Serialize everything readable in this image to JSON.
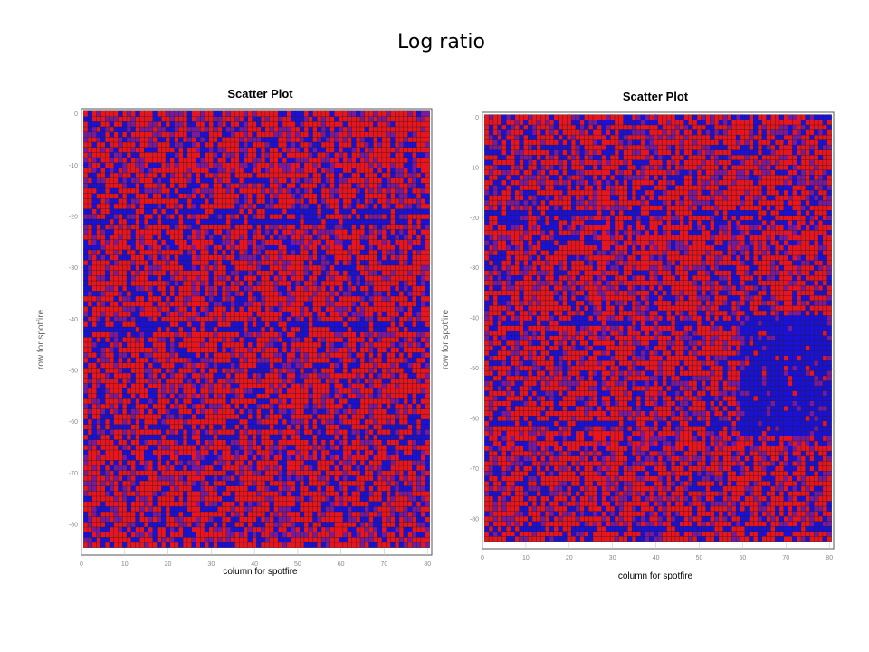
{
  "page": {
    "title": "Log ratio"
  },
  "colors": {
    "red": "#e8141e",
    "blue": "#1a10d8",
    "purple": "#7a1a9a",
    "grid": "#c8c8c8",
    "tick_text": "#888888",
    "frame": "#555555"
  },
  "chart_data": [
    {
      "type": "scatter",
      "title": "Scatter Plot",
      "xlabel": "column for spotfire",
      "ylabel": "row for spotfire",
      "xlim": [
        0,
        81
      ],
      "ylim": [
        -86,
        1
      ],
      "x_ticks": [
        0,
        10,
        20,
        30,
        40,
        50,
        60,
        70,
        80
      ],
      "y_ticks": [
        -80,
        -70,
        -60,
        -50,
        -40,
        -30,
        -20,
        -10,
        0
      ],
      "grid": true,
      "points_grid": {
        "columns": [
          1,
          80
        ],
        "rows": [
          -84,
          0
        ]
      },
      "color_by": "log ratio",
      "series_colors": [
        "red",
        "blue",
        "purple"
      ],
      "notes_blue_rows": [
        -19,
        -21,
        -41,
        -42,
        -61,
        -63
      ]
    },
    {
      "type": "scatter",
      "title": "Scatter Plot",
      "xlabel": "column for spotfire",
      "ylabel": "row for spotfire",
      "xlim": [
        0,
        81
      ],
      "ylim": [
        -86,
        1
      ],
      "x_ticks": [
        0,
        10,
        20,
        30,
        40,
        50,
        60,
        70,
        80
      ],
      "y_ticks": [
        -80,
        -70,
        -60,
        -50,
        -40,
        -30,
        -20,
        -10,
        0
      ],
      "grid": true,
      "points_grid": {
        "columns": [
          1,
          80
        ],
        "rows": [
          -84,
          0
        ]
      },
      "color_by": "log ratio",
      "series_colors": [
        "red",
        "blue",
        "purple"
      ],
      "blue_block": {
        "columns": [
          60,
          80
        ],
        "rows": [
          -63,
          -40
        ]
      },
      "notes_blue_rows": [
        -19,
        -21,
        -41,
        -61,
        -82
      ]
    }
  ]
}
